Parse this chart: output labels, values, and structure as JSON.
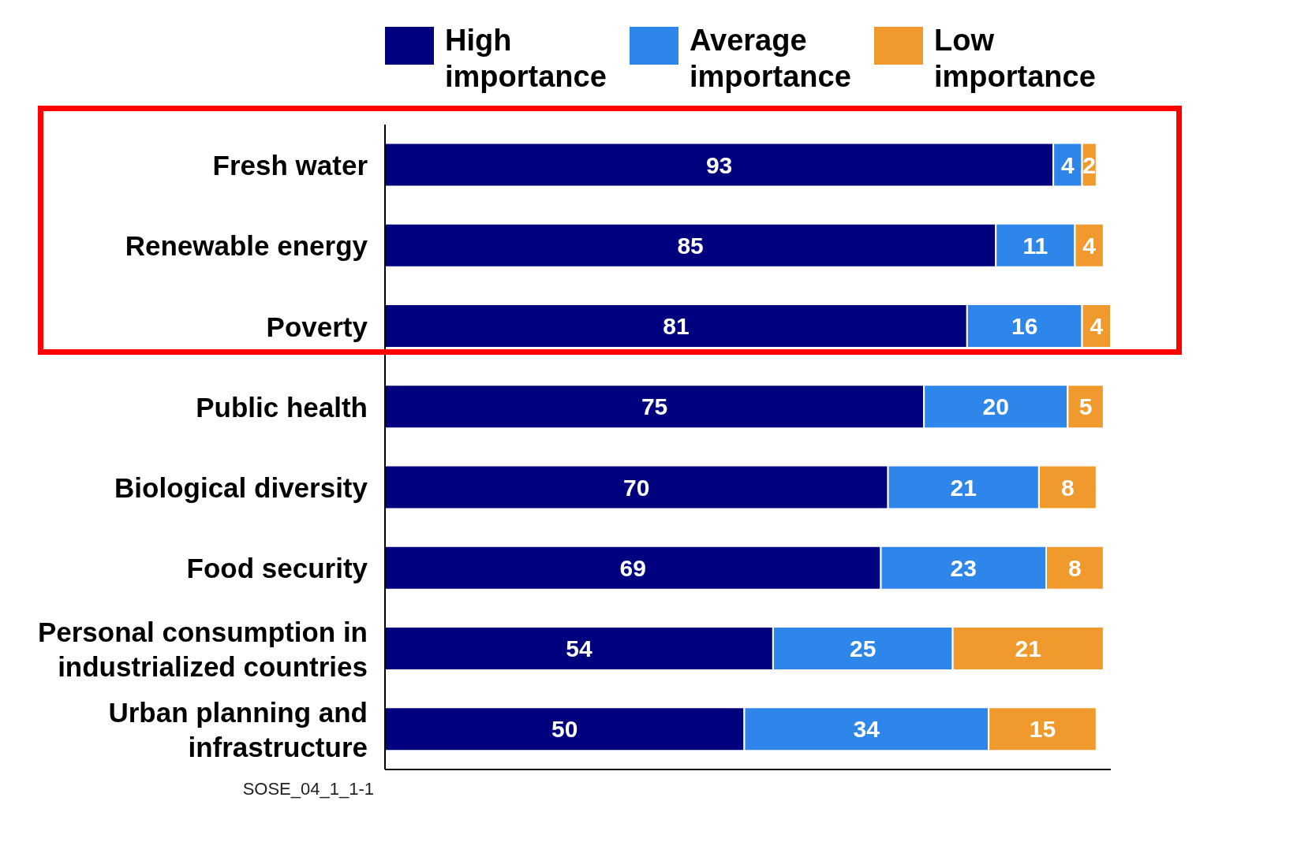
{
  "chart_data": {
    "type": "bar",
    "orientation": "horizontal",
    "stacked": true,
    "data_labels": true,
    "legend": "top",
    "tick_labels": "y",
    "categories": [
      "Fresh water",
      "Renewable energy",
      "Poverty",
      "Public health",
      "Biological diversity",
      "Food security",
      "Personal consumption in industrialized countries",
      "Urban planning and infrastructure"
    ],
    "series": [
      {
        "name": "High importance",
        "color": "#00007f",
        "values": [
          93,
          85,
          81,
          75,
          70,
          69,
          54,
          50
        ]
      },
      {
        "name": "Average importance",
        "color": "#2e86ea",
        "values": [
          4,
          11,
          16,
          20,
          21,
          23,
          25,
          34
        ]
      },
      {
        "name": "Low importance",
        "color": "#f09a2d",
        "values": [
          2,
          4,
          4,
          5,
          8,
          8,
          21,
          15
        ]
      }
    ],
    "annotations": [
      "SOSE_04_1_1-1"
    ]
  }
}
